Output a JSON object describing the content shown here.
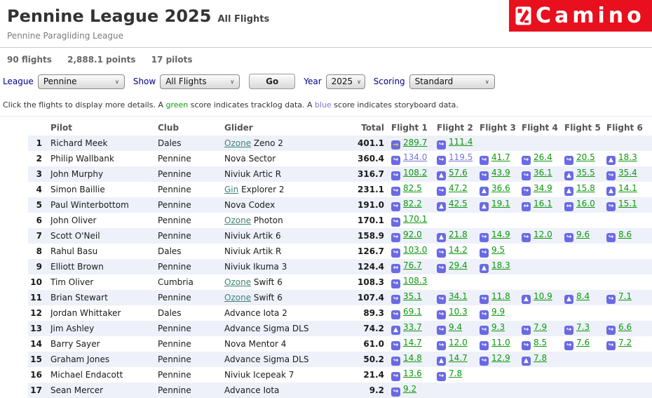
{
  "header": {
    "title": "Pennine League 2025",
    "title_suffix": "All Flights",
    "subtitle": "Pennine Paragliding League",
    "logo_text": "Camino"
  },
  "stats": {
    "flights": "90 flights",
    "points": "2,888.1 points",
    "pilots": "17 pilots"
  },
  "controls": {
    "league_label": "League",
    "league_value": "Pennine",
    "show_label": "Show",
    "show_value": "All Flights",
    "go_label": "Go",
    "year_label": "Year",
    "year_value": "2025",
    "scoring_label": "Scoring",
    "scoring_value": "Standard"
  },
  "note": {
    "part1": "Click the flights to display more details. A ",
    "green_word": "green",
    "part2": " score indicates tracklog data. A ",
    "blue_word": "blue",
    "part3": " score indicates storyboard data."
  },
  "icons": {
    "curved-arrow": "↪",
    "triangle": "▲",
    "double-arrow": "↔",
    "straight-arrow": "→"
  },
  "colors": {
    "badge_blue": "#6a6ae4",
    "tracklog_green": "#0b9b0b",
    "storyboard_blue": "#7676dd",
    "banner_red": "#e8101e",
    "brand_link": "#3d8573"
  },
  "table": {
    "headers": [
      "Pilot",
      "Club",
      "Glider",
      "Total",
      "Flight 1",
      "Flight 2",
      "Flight 3",
      "Flight 4",
      "Flight 5",
      "Flight 6"
    ],
    "rows": [
      {
        "rank": "1",
        "pilot": "Richard Meek",
        "club": "Dales",
        "glider": {
          "brand": "Ozone",
          "model": "Zeno 2",
          "brand_is_link": true
        },
        "total": "401.1",
        "flights": [
          {
            "icon": "straight-arrow",
            "arrow_color": "yellow",
            "score": "289.7",
            "data": "tracklog"
          },
          {
            "icon": "curved-arrow",
            "score": "111.4",
            "data": "tracklog"
          }
        ]
      },
      {
        "rank": "2",
        "pilot": "Philip Wallbank",
        "club": "Pennine",
        "glider": {
          "brand": "Nova",
          "model": "Sector",
          "brand_is_link": false
        },
        "total": "360.4",
        "flights": [
          {
            "icon": "curved-arrow",
            "score": "134.0",
            "data": "storyboard"
          },
          {
            "icon": "curved-arrow",
            "score": "119.5",
            "data": "storyboard"
          },
          {
            "icon": "curved-arrow",
            "score": "41.7",
            "data": "tracklog"
          },
          {
            "icon": "curved-arrow",
            "score": "26.4",
            "data": "tracklog"
          },
          {
            "icon": "curved-arrow",
            "score": "20.5",
            "data": "tracklog"
          },
          {
            "icon": "triangle",
            "score": "18.3",
            "data": "tracklog"
          }
        ]
      },
      {
        "rank": "3",
        "pilot": "John Murphy",
        "club": "Pennine",
        "glider": {
          "brand": "Niviuk",
          "model": "Artic R",
          "brand_is_link": false
        },
        "total": "316.7",
        "flights": [
          {
            "icon": "curved-arrow",
            "score": "108.2",
            "data": "tracklog"
          },
          {
            "icon": "triangle",
            "score": "57.6",
            "data": "tracklog"
          },
          {
            "icon": "curved-arrow",
            "score": "43.9",
            "data": "tracklog"
          },
          {
            "icon": "curved-arrow",
            "score": "36.1",
            "data": "tracklog"
          },
          {
            "icon": "triangle",
            "score": "35.5",
            "data": "tracklog"
          },
          {
            "icon": "curved-arrow",
            "score": "35.4",
            "data": "tracklog"
          }
        ]
      },
      {
        "rank": "4",
        "pilot": "Simon Baillie",
        "club": "Pennine",
        "glider": {
          "brand": "Gin",
          "model": "Explorer 2",
          "brand_is_link": true
        },
        "total": "231.1",
        "flights": [
          {
            "icon": "curved-arrow",
            "score": "82.5",
            "data": "tracklog"
          },
          {
            "icon": "curved-arrow",
            "score": "47.2",
            "data": "tracklog"
          },
          {
            "icon": "triangle",
            "score": "36.6",
            "data": "tracklog"
          },
          {
            "icon": "curved-arrow",
            "score": "34.9",
            "data": "tracklog"
          },
          {
            "icon": "triangle",
            "score": "15.8",
            "data": "tracklog"
          },
          {
            "icon": "triangle",
            "score": "14.1",
            "data": "tracklog"
          }
        ]
      },
      {
        "rank": "5",
        "pilot": "Paul Winterbottom",
        "club": "Pennine",
        "glider": {
          "brand": "Nova",
          "model": "Codex",
          "brand_is_link": false
        },
        "total": "191.0",
        "flights": [
          {
            "icon": "curved-arrow",
            "score": "82.2",
            "data": "tracklog"
          },
          {
            "icon": "triangle",
            "score": "42.5",
            "data": "tracklog"
          },
          {
            "icon": "triangle",
            "score": "19.1",
            "data": "tracklog"
          },
          {
            "icon": "double-arrow",
            "score": "16.1",
            "data": "tracklog"
          },
          {
            "icon": "double-arrow",
            "score": "16.0",
            "data": "tracklog"
          },
          {
            "icon": "curved-arrow",
            "score": "15.1",
            "data": "tracklog"
          }
        ]
      },
      {
        "rank": "6",
        "pilot": "John Oliver",
        "club": "Pennine",
        "glider": {
          "brand": "Ozone",
          "model": "Photon",
          "brand_is_link": true
        },
        "total": "170.1",
        "flights": [
          {
            "icon": "curved-arrow",
            "score": "170.1",
            "data": "tracklog"
          }
        ]
      },
      {
        "rank": "7",
        "pilot": "Scott O'Neil",
        "club": "Pennine",
        "glider": {
          "brand": "Niviuk",
          "model": "Artik 6",
          "brand_is_link": false
        },
        "total": "158.9",
        "flights": [
          {
            "icon": "curved-arrow",
            "score": "92.0",
            "data": "tracklog"
          },
          {
            "icon": "triangle",
            "score": "21.8",
            "data": "tracklog"
          },
          {
            "icon": "curved-arrow",
            "score": "14.9",
            "data": "tracklog"
          },
          {
            "icon": "curved-arrow",
            "score": "12.0",
            "data": "tracklog"
          },
          {
            "icon": "curved-arrow",
            "score": "9.6",
            "data": "tracklog"
          },
          {
            "icon": "curved-arrow",
            "score": "8.6",
            "data": "tracklog"
          }
        ]
      },
      {
        "rank": "8",
        "pilot": "Rahul Basu",
        "club": "Dales",
        "glider": {
          "brand": "Niviuk",
          "model": "Artik R",
          "brand_is_link": false
        },
        "total": "126.7",
        "flights": [
          {
            "icon": "curved-arrow",
            "score": "103.0",
            "data": "tracklog"
          },
          {
            "icon": "curved-arrow",
            "score": "14.2",
            "data": "tracklog"
          },
          {
            "icon": "curved-arrow",
            "score": "9.5",
            "data": "tracklog"
          }
        ]
      },
      {
        "rank": "9",
        "pilot": "Elliott Brown",
        "club": "Pennine",
        "glider": {
          "brand": "Niviuk",
          "model": "Ikuma 3",
          "brand_is_link": false
        },
        "total": "124.4",
        "flights": [
          {
            "icon": "double-arrow",
            "score": "76.7",
            "data": "tracklog"
          },
          {
            "icon": "curved-arrow",
            "score": "29.4",
            "data": "tracklog"
          },
          {
            "icon": "triangle",
            "score": "18.3",
            "data": "tracklog"
          }
        ]
      },
      {
        "rank": "10",
        "pilot": "Tim Oliver",
        "club": "Cumbria",
        "glider": {
          "brand": "Ozone",
          "model": "Swift 6",
          "brand_is_link": true
        },
        "total": "108.3",
        "flights": [
          {
            "icon": "curved-arrow",
            "score": "108.3",
            "data": "tracklog"
          }
        ]
      },
      {
        "rank": "11",
        "pilot": "Brian Stewart",
        "club": "Pennine",
        "glider": {
          "brand": "Ozone",
          "model": "Swift 6",
          "brand_is_link": true
        },
        "total": "107.4",
        "flights": [
          {
            "icon": "curved-arrow",
            "score": "35.1",
            "data": "tracklog"
          },
          {
            "icon": "curved-arrow",
            "score": "34.1",
            "data": "tracklog"
          },
          {
            "icon": "curved-arrow",
            "score": "11.8",
            "data": "tracklog"
          },
          {
            "icon": "triangle",
            "score": "10.9",
            "data": "tracklog"
          },
          {
            "icon": "triangle",
            "score": "8.4",
            "data": "tracklog"
          },
          {
            "icon": "curved-arrow",
            "score": "7.1",
            "data": "tracklog"
          }
        ]
      },
      {
        "rank": "12",
        "pilot": "Jordan Whittaker",
        "club": "Dales",
        "glider": {
          "brand": "Advance",
          "model": "Iota 2",
          "brand_is_link": false
        },
        "total": "89.3",
        "flights": [
          {
            "icon": "curved-arrow",
            "score": "69.1",
            "data": "tracklog"
          },
          {
            "icon": "curved-arrow",
            "score": "10.3",
            "data": "tracklog"
          },
          {
            "icon": "curved-arrow",
            "score": "9.9",
            "data": "tracklog"
          }
        ]
      },
      {
        "rank": "13",
        "pilot": "Jim Ashley",
        "club": "Pennine",
        "glider": {
          "brand": "Advance",
          "model": "Sigma DLS",
          "brand_is_link": false
        },
        "total": "74.2",
        "flights": [
          {
            "icon": "triangle",
            "score": "33.7",
            "data": "tracklog"
          },
          {
            "icon": "curved-arrow",
            "score": "9.4",
            "data": "tracklog"
          },
          {
            "icon": "curved-arrow",
            "score": "9.3",
            "data": "tracklog"
          },
          {
            "icon": "curved-arrow",
            "score": "7.9",
            "data": "tracklog"
          },
          {
            "icon": "curved-arrow",
            "score": "7.3",
            "data": "tracklog"
          },
          {
            "icon": "curved-arrow",
            "score": "6.6",
            "data": "tracklog"
          }
        ]
      },
      {
        "rank": "14",
        "pilot": "Barry Sayer",
        "club": "Pennine",
        "glider": {
          "brand": "Nova",
          "model": "Mentor 4",
          "brand_is_link": false
        },
        "total": "61.0",
        "flights": [
          {
            "icon": "curved-arrow",
            "score": "14.7",
            "data": "tracklog"
          },
          {
            "icon": "curved-arrow",
            "score": "12.0",
            "data": "tracklog"
          },
          {
            "icon": "curved-arrow",
            "score": "11.0",
            "data": "tracklog"
          },
          {
            "icon": "curved-arrow",
            "score": "8.5",
            "data": "tracklog"
          },
          {
            "icon": "curved-arrow",
            "score": "7.6",
            "data": "tracklog"
          },
          {
            "icon": "curved-arrow",
            "score": "7.2",
            "data": "tracklog"
          }
        ]
      },
      {
        "rank": "15",
        "pilot": "Graham Jones",
        "club": "Pennine",
        "glider": {
          "brand": "Advance",
          "model": "Sigma DLS",
          "brand_is_link": false
        },
        "total": "50.2",
        "flights": [
          {
            "icon": "curved-arrow",
            "score": "14.8",
            "data": "tracklog"
          },
          {
            "icon": "triangle",
            "score": "14.7",
            "data": "tracklog"
          },
          {
            "icon": "curved-arrow",
            "score": "12.9",
            "data": "tracklog"
          },
          {
            "icon": "triangle",
            "score": "7.8",
            "data": "tracklog"
          }
        ]
      },
      {
        "rank": "16",
        "pilot": "Michael Endacott",
        "club": "Pennine",
        "glider": {
          "brand": "Niviuk",
          "model": "Icepeak 7",
          "brand_is_link": false
        },
        "total": "21.4",
        "flights": [
          {
            "icon": "curved-arrow",
            "score": "13.6",
            "data": "tracklog"
          },
          {
            "icon": "curved-arrow",
            "score": "7.8",
            "data": "tracklog"
          }
        ]
      },
      {
        "rank": "17",
        "pilot": "Sean Mercer",
        "club": "Pennine",
        "glider": {
          "brand": "Advance",
          "model": "Iota",
          "brand_is_link": false
        },
        "total": "9.2",
        "flights": [
          {
            "icon": "curved-arrow",
            "score": "9.2",
            "data": "tracklog"
          }
        ]
      }
    ]
  }
}
